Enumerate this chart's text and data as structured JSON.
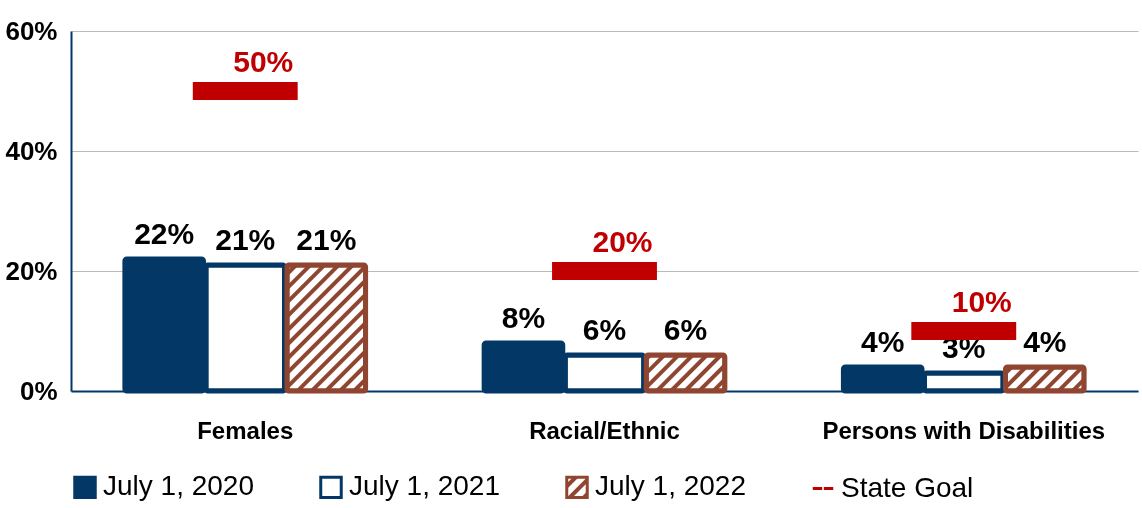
{
  "chart_data": {
    "type": "bar",
    "categories": [
      "Females",
      "Racial/Ethnic",
      "Persons with Disabilities"
    ],
    "series": [
      {
        "name": "July 1, 2020",
        "color": "#033866",
        "values": [
          22,
          8,
          4
        ],
        "value_labels": [
          "22%",
          "8%",
          "4%"
        ]
      },
      {
        "name": "July 1, 2021",
        "color": "#033866",
        "values": [
          21,
          6,
          3
        ],
        "value_labels": [
          "21%",
          "6%",
          "3%"
        ]
      },
      {
        "name": "July 1, 2022",
        "color": "#8f4530",
        "values": [
          21,
          6,
          4
        ],
        "value_labels": [
          "21%",
          "6%",
          "4%"
        ]
      },
      {
        "name": "State Goal",
        "type": "scatter",
        "color": "#c00000",
        "values": [
          50,
          20,
          10
        ],
        "value_labels": [
          "50%",
          "20%",
          "10%"
        ]
      }
    ],
    "ylim": [
      0,
      60
    ],
    "yticks": [
      {
        "value": 0,
        "label": "0%"
      },
      {
        "value": 20,
        "label": "20%"
      },
      {
        "value": 40,
        "label": "40%"
      },
      {
        "value": 60,
        "label": "60%"
      }
    ],
    "grid": "y",
    "legend": "bottom"
  }
}
